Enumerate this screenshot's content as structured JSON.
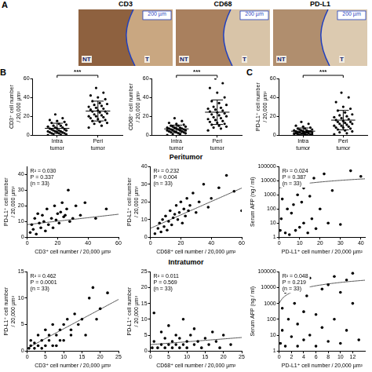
{
  "micrographs": {
    "letter": "A",
    "images": [
      {
        "title": "CD3",
        "scale_bar": "200 µm",
        "regions": [
          "NT",
          "T"
        ]
      },
      {
        "title": "CD68",
        "scale_bar": "200 µm",
        "regions": [
          "NT",
          "T"
        ]
      },
      {
        "title": "PD-L1",
        "scale_bar": "200 µm",
        "regions": [
          "NT",
          "T"
        ]
      }
    ]
  },
  "row_titles": [
    "Peritumor",
    "Intratumor"
  ],
  "chart_data": [
    {
      "type": "dot",
      "panel": "B",
      "categories": [
        "Intra tumor",
        "Peri tumor"
      ],
      "ylabel": "CD3⁺ cell number / 20,000 µm²",
      "ylim": [
        0,
        60
      ],
      "yticks": [
        0,
        20,
        40,
        60
      ],
      "grid": false,
      "color": "#000000",
      "values": [
        [
          0,
          0,
          1,
          1,
          2,
          2,
          2,
          3,
          3,
          3,
          4,
          4,
          4,
          5,
          5,
          5,
          6,
          6,
          7,
          7,
          8,
          8,
          9,
          10,
          10,
          11,
          12,
          13,
          14,
          15,
          16,
          18,
          22
        ],
        [
          8,
          10,
          12,
          13,
          14,
          15,
          16,
          17,
          18,
          19,
          20,
          20,
          21,
          22,
          23,
          24,
          25,
          25,
          26,
          27,
          28,
          29,
          30,
          31,
          32,
          33,
          34,
          36,
          38,
          40,
          42,
          45,
          50
        ]
      ],
      "means": [
        7.2,
        25.5
      ],
      "sds": [
        5.4,
        10.5
      ],
      "annotations": [
        "***"
      ]
    },
    {
      "type": "dot",
      "categories": [
        "Intra tumor",
        "Peri tumor"
      ],
      "ylabel": "CD68⁺ cell number / 20,000 µm²",
      "ylim": [
        0,
        60
      ],
      "yticks": [
        0,
        20,
        40,
        60
      ],
      "grid": false,
      "color": "#000000",
      "values": [
        [
          0,
          1,
          1,
          2,
          2,
          3,
          3,
          3,
          4,
          4,
          4,
          5,
          5,
          5,
          5,
          6,
          6,
          6,
          7,
          7,
          7,
          8,
          8,
          8,
          9,
          9,
          10,
          10,
          11,
          12,
          13,
          15,
          18
        ],
        [
          5,
          7,
          8,
          9,
          10,
          11,
          12,
          13,
          14,
          15,
          16,
          17,
          18,
          19,
          20,
          21,
          22,
          23,
          24,
          25,
          26,
          27,
          28,
          29,
          30,
          32,
          34,
          36,
          40,
          45,
          50,
          55,
          60
        ]
      ],
      "means": [
        6.6,
        24.3
      ],
      "sds": [
        4.0,
        13.0
      ],
      "annotations": [
        "***"
      ]
    },
    {
      "type": "dot",
      "panel": "C",
      "categories": [
        "Intra tumor",
        "Peri tumor"
      ],
      "ylabel": "PD-L1⁺ cell number / 20,000 µm²",
      "ylim": [
        0,
        60
      ],
      "yticks": [
        0,
        20,
        40,
        60
      ],
      "grid": false,
      "color": "#000000",
      "values": [
        [
          0,
          0,
          0,
          1,
          1,
          1,
          1,
          2,
          2,
          2,
          2,
          2,
          3,
          3,
          3,
          3,
          3,
          4,
          4,
          4,
          4,
          5,
          5,
          5,
          6,
          6,
          7,
          7,
          8,
          9,
          10,
          12,
          14
        ],
        [
          1,
          2,
          3,
          4,
          5,
          6,
          7,
          8,
          8,
          9,
          10,
          10,
          11,
          12,
          12,
          13,
          14,
          14,
          15,
          16,
          17,
          18,
          19,
          20,
          21,
          22,
          24,
          26,
          28,
          30,
          35,
          40,
          45
        ]
      ],
      "means": [
        4.2,
        15.9
      ],
      "sds": [
        3.4,
        10.3
      ],
      "annotations": [
        "***"
      ]
    },
    {
      "type": "scatter",
      "xlabel": "CD3⁺ cell number / 20,000 µm²",
      "ylabel": "PD-L1⁺ cell number / 20,000 µm²",
      "xlim": [
        0,
        60
      ],
      "xticks": [
        0,
        20,
        40,
        60
      ],
      "ylim": [
        0,
        45
      ],
      "yticks": [
        0,
        10,
        20,
        30,
        40
      ],
      "grid": false,
      "color": "#000000",
      "marker": "circle",
      "x": [
        2,
        3,
        4,
        5,
        6,
        7,
        8,
        9,
        10,
        11,
        12,
        13,
        14,
        15,
        16,
        17,
        18,
        19,
        20,
        21,
        22,
        23,
        24,
        25,
        26,
        27,
        28,
        30,
        32,
        35,
        38,
        45,
        52
      ],
      "values": [
        3,
        8,
        5,
        12,
        2,
        15,
        9,
        6,
        14,
        10,
        4,
        18,
        8,
        41,
        12,
        6,
        20,
        11,
        15,
        9,
        16,
        22,
        13,
        14,
        18,
        30,
        10,
        12,
        20,
        14,
        22,
        12,
        18
      ],
      "fit": {
        "intercept": 8,
        "slope": 0.11
      },
      "annotations": [
        "R² = 0.030",
        "P = 0.337",
        "(n = 33)"
      ]
    },
    {
      "type": "scatter",
      "xlabel": "CD68⁺ cell number / 20,000 µm²",
      "ylabel": "PD-L1⁺ cell number / 20,000 µm²",
      "xlim": [
        0,
        60
      ],
      "xticks": [
        0,
        20,
        40,
        60
      ],
      "ylim": [
        0,
        40
      ],
      "yticks": [
        0,
        10,
        20,
        30,
        40
      ],
      "grid": false,
      "color": "#000000",
      "marker": "circle",
      "x": [
        3,
        5,
        6,
        7,
        8,
        9,
        10,
        11,
        12,
        13,
        14,
        15,
        16,
        17,
        18,
        19,
        20,
        21,
        22,
        23,
        24,
        25,
        26,
        28,
        30,
        32,
        35,
        38,
        40,
        45,
        50,
        55,
        60
      ],
      "values": [
        2,
        5,
        8,
        3,
        10,
        6,
        12,
        4,
        9,
        15,
        7,
        11,
        13,
        18,
        10,
        14,
        20,
        8,
        16,
        12,
        22,
        15,
        18,
        25,
        14,
        20,
        30,
        17,
        22,
        28,
        35,
        26,
        15
      ],
      "fit": {
        "intercept": 5,
        "slope": 0.38
      },
      "annotations": [
        "R² = 0.232",
        "P = 0.004",
        "(n = 33)"
      ]
    },
    {
      "type": "scatter",
      "xlabel": "PD-L1⁺ cell number / 20,000 µm²",
      "ylabel": "Serum AFP (ng / ml)",
      "log": "y",
      "xlim": [
        0,
        42
      ],
      "xticks": [
        0,
        10,
        20,
        30,
        40
      ],
      "ylim": [
        1,
        100000
      ],
      "yticks": [
        1,
        10,
        100,
        1000,
        10000,
        100000
      ],
      "grid": false,
      "color": "#000000",
      "marker": "circle",
      "x": [
        0.5,
        1,
        1.5,
        2,
        3,
        3,
        4,
        5,
        5,
        6,
        6,
        7,
        8,
        8,
        9,
        10,
        10,
        11,
        12,
        12,
        13,
        14,
        15,
        16,
        17,
        18,
        20,
        22,
        24,
        26,
        30,
        35,
        40
      ],
      "values": [
        3,
        20,
        500,
        5000,
        30000,
        2,
        100,
        8000,
        1.5,
        50,
        20000,
        200,
        3,
        40000,
        1000,
        5,
        60000,
        300,
        10,
        3000,
        50000,
        2,
        800,
        20,
        15000,
        4,
        100,
        30000,
        10,
        2000,
        8,
        50000,
        20000
      ],
      "fit": {
        "intercept": 3000,
        "slope": 250
      },
      "annotations": [
        "R² = 0.024",
        "P = 0.387",
        "(n = 33)"
      ]
    },
    {
      "type": "scatter",
      "xlabel": "CD3⁺ cell number / 20,000 µm²",
      "ylabel": "PD-L1⁺ cell number / 20,000 µm²",
      "xlim": [
        0,
        25
      ],
      "xticks": [
        0,
        5,
        10,
        15,
        20,
        25
      ],
      "ylim": [
        0,
        15
      ],
      "yticks": [
        0,
        5,
        10,
        15
      ],
      "grid": false,
      "color": "#000000",
      "marker": "circle",
      "x": [
        0.5,
        1,
        1,
        2,
        2,
        3,
        3,
        4,
        4,
        5,
        5,
        6,
        6,
        7,
        7,
        8,
        8,
        9,
        9,
        10,
        10,
        11,
        12,
        12,
        13,
        14,
        15,
        16,
        17,
        18,
        19,
        20,
        22
      ],
      "values": [
        0.5,
        1,
        2,
        0.5,
        1.5,
        1,
        3,
        2,
        0.5,
        1,
        4,
        2,
        3,
        1,
        5,
        3,
        1,
        2,
        4,
        5,
        2,
        6,
        3,
        4,
        7,
        5,
        6,
        3,
        10,
        12,
        6,
        8,
        11
      ],
      "fit": {
        "intercept": 0.5,
        "slope": 0.37
      },
      "annotations": [
        "R² = 0.462",
        "P = 0.0001",
        "(n = 33)"
      ]
    },
    {
      "type": "scatter",
      "xlabel": "CD68⁺ cell number / 20,000 µm²",
      "ylabel": "PD-L1⁺ cell number / 20,000 µm²",
      "xlim": [
        0,
        25
      ],
      "xticks": [
        0,
        5,
        10,
        15,
        20,
        25
      ],
      "ylim": [
        0,
        25
      ],
      "yticks": [
        0,
        5,
        10,
        15,
        20,
        25
      ],
      "grid": false,
      "color": "#000000",
      "marker": "circle",
      "x": [
        0.5,
        1,
        1,
        2,
        2,
        3,
        3,
        4,
        4,
        5,
        5,
        6,
        6,
        7,
        7,
        8,
        8,
        9,
        9,
        10,
        10,
        11,
        12,
        12,
        13,
        14,
        15,
        16,
        17,
        18,
        19,
        20,
        22
      ],
      "values": [
        1,
        12,
        3,
        1,
        20,
        2,
        6,
        1,
        4,
        2,
        8,
        1,
        3,
        2,
        5,
        1,
        4,
        2,
        10,
        3,
        1,
        5,
        2,
        7,
        3,
        1,
        4,
        2,
        6,
        3,
        1,
        5,
        2
      ],
      "fit": {
        "intercept": 2,
        "slope": 0.09
      },
      "annotations": [
        "R² = 0.011",
        "P = 0.569",
        "(n = 33)"
      ]
    },
    {
      "type": "scatter",
      "xlabel": "PD-L1⁺ cell number / 20,000 µm²",
      "ylabel": "Serum AFP (ng / ml)",
      "log": "y",
      "xlim": [
        0,
        14
      ],
      "xticks": [
        0,
        2,
        4,
        6,
        8,
        10,
        12
      ],
      "ylim": [
        1,
        100000
      ],
      "yticks": [
        1,
        10,
        100,
        1000,
        10000,
        100000
      ],
      "grid": false,
      "color": "#000000",
      "marker": "circle",
      "x": [
        0.2,
        0.5,
        0.5,
        1,
        1,
        1,
        1.5,
        2,
        2,
        2.5,
        3,
        3,
        3,
        4,
        4,
        4.5,
        5,
        5,
        6,
        6,
        7,
        7,
        8,
        8,
        9,
        9,
        10,
        10,
        11,
        11,
        12,
        12,
        13
      ],
      "values": [
        3,
        500,
        20,
        5000,
        2,
        30000,
        100,
        8,
        20000,
        1000,
        2,
        50,
        60000,
        300,
        5,
        3000,
        10,
        40000,
        200,
        2,
        8000,
        30,
        4,
        15000,
        100,
        50000,
        3,
        5000,
        20,
        30000,
        1000,
        80000,
        5
      ],
      "fit": {
        "intercept": 1000,
        "slope": 2000
      },
      "annotations": [
        "R² = 0.048",
        "P = 0.219",
        "(n = 33)"
      ]
    }
  ]
}
